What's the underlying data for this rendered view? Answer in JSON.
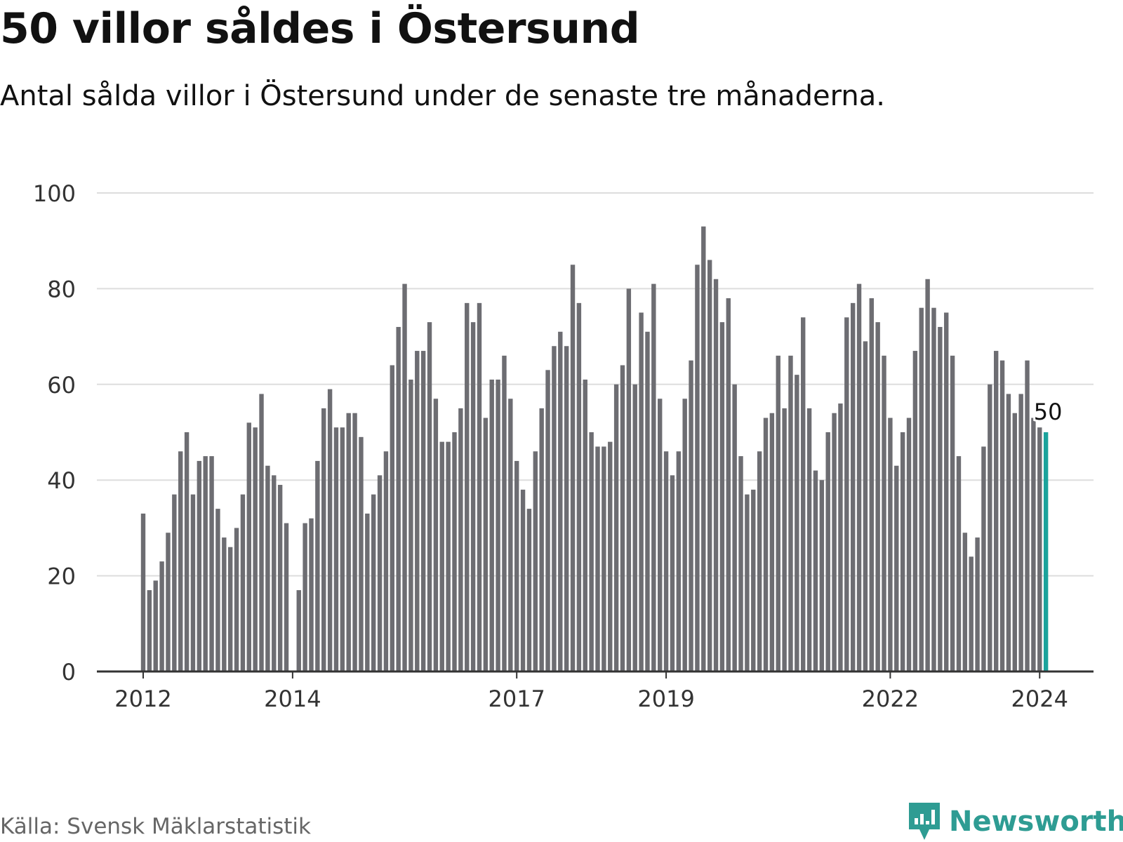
{
  "header": {
    "title": "50 villor såldes i Östersund",
    "subtitle": "Antal sålda villor i Östersund under de senaste tre månaderna."
  },
  "footer": {
    "source": "Källa: Svensk Mäklarstatistik",
    "brand": "Newsworthy",
    "brand_icon": "newsworthy-logo-icon"
  },
  "colors": {
    "bar": "#6d6d72",
    "highlight": "#1ba39c",
    "grid": "#dddddd",
    "axis": "#333333",
    "brand": "#2e9c93"
  },
  "chart_data": {
    "type": "bar",
    "title": "50 villor såldes i Östersund",
    "subtitle": "Antal sålda villor i Östersund under de senaste tre månaderna.",
    "xlabel": "",
    "ylabel": "",
    "ylim": [
      0,
      100
    ],
    "yticks": [
      0,
      20,
      40,
      60,
      80,
      100
    ],
    "grid": true,
    "x_start": "2012-01",
    "x_end": "2024-02",
    "xticks": [
      {
        "label": "2012",
        "index": 0
      },
      {
        "label": "2014",
        "index": 24
      },
      {
        "label": "2017",
        "index": 60
      },
      {
        "label": "2019",
        "index": 84
      },
      {
        "label": "2022",
        "index": 120
      },
      {
        "label": "2024",
        "index": 144
      }
    ],
    "values": [
      33,
      17,
      19,
      23,
      29,
      37,
      46,
      50,
      37,
      44,
      45,
      45,
      34,
      28,
      26,
      30,
      37,
      52,
      51,
      58,
      43,
      41,
      39,
      31,
      0,
      17,
      31,
      32,
      44,
      55,
      59,
      51,
      51,
      54,
      54,
      49,
      33,
      37,
      41,
      46,
      64,
      72,
      81,
      61,
      67,
      67,
      73,
      57,
      48,
      48,
      50,
      55,
      77,
      73,
      77,
      53,
      61,
      61,
      66,
      57,
      44,
      38,
      34,
      46,
      55,
      63,
      68,
      71,
      68,
      85,
      77,
      61,
      50,
      47,
      47,
      48,
      60,
      64,
      80,
      60,
      75,
      71,
      81,
      57,
      46,
      41,
      46,
      57,
      65,
      85,
      93,
      86,
      82,
      73,
      78,
      60,
      45,
      37,
      38,
      46,
      53,
      54,
      66,
      55,
      66,
      62,
      74,
      55,
      42,
      40,
      50,
      54,
      56,
      74,
      77,
      81,
      69,
      78,
      73,
      66,
      53,
      43,
      50,
      53,
      67,
      76,
      82,
      76,
      72,
      75,
      66,
      45,
      29,
      24,
      28,
      47,
      60,
      67,
      65,
      58,
      54,
      58,
      65,
      53,
      51,
      50
    ],
    "highlight_index": 145,
    "highlight_label": "50"
  }
}
